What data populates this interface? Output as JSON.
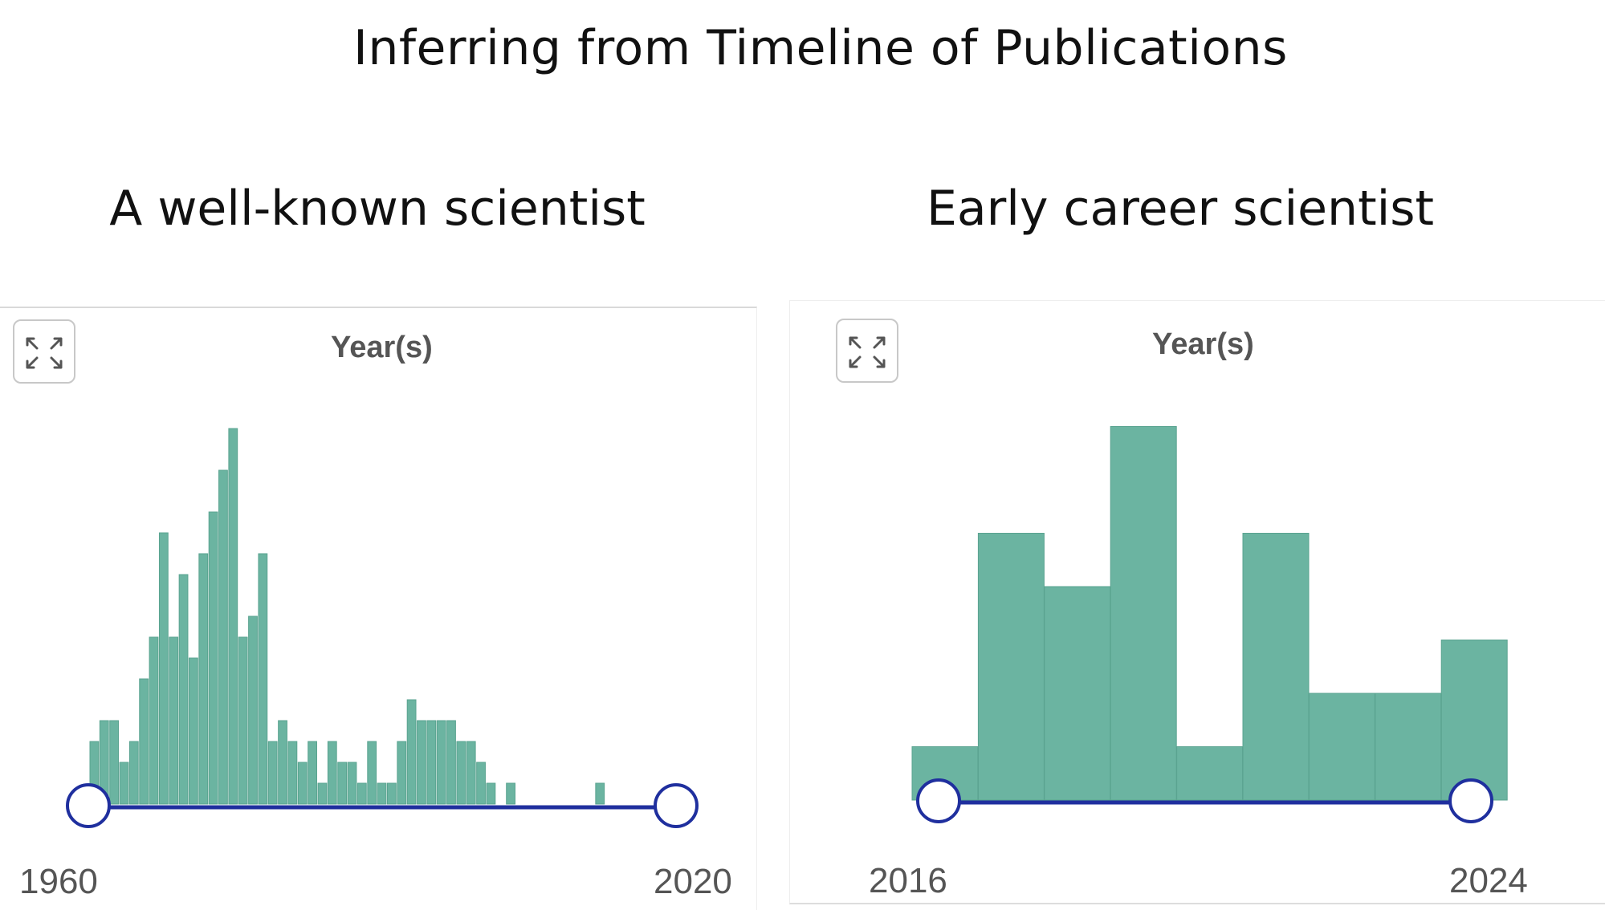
{
  "title": "Inferring from Timeline of Publications",
  "colors": {
    "bar": "#6bb4a1",
    "bar_edge": "#5aa390",
    "slider": "#1f2f9e",
    "handle_fill": "#ffffff"
  },
  "panels": [
    {
      "heading": "A well-known scientist",
      "header": "Year(s)",
      "expand_icon": "expand-arrows-icon",
      "range_min": "1960",
      "range_max": "2020"
    },
    {
      "heading": "Early career scientist",
      "header": "Year(s)",
      "expand_icon": "expand-arrows-icon",
      "range_min": "2016",
      "range_max": "2024"
    }
  ],
  "chart_data": [
    {
      "type": "bar",
      "title": "A well-known scientist",
      "xlabel": "Year(s)",
      "ylabel": "",
      "x": [
        1960,
        1961,
        1962,
        1963,
        1964,
        1965,
        1966,
        1967,
        1968,
        1969,
        1970,
        1971,
        1972,
        1973,
        1974,
        1975,
        1976,
        1977,
        1978,
        1979,
        1980,
        1981,
        1982,
        1983,
        1984,
        1985,
        1986,
        1987,
        1988,
        1989,
        1990,
        1991,
        1992,
        1993,
        1994,
        1995,
        1996,
        1997,
        1998,
        1999,
        2000,
        2001,
        2002,
        2003,
        2004,
        2005,
        2006,
        2007,
        2008,
        2009,
        2010,
        2011,
        2012,
        2013,
        2014,
        2015,
        2016,
        2017,
        2018,
        2019,
        2020
      ],
      "values": [
        3,
        4,
        4,
        2,
        3,
        6,
        8,
        13,
        8,
        11,
        7,
        12,
        14,
        16,
        18,
        8,
        9,
        12,
        3,
        4,
        3,
        2,
        3,
        1,
        3,
        2,
        2,
        1,
        3,
        1,
        1,
        3,
        5,
        4,
        4,
        4,
        4,
        3,
        3,
        2,
        1,
        0,
        1,
        0,
        0,
        0,
        0,
        0,
        0,
        0,
        0,
        1,
        0,
        0,
        0,
        0,
        0,
        0,
        0,
        0,
        0
      ],
      "xlim": [
        1960,
        2020
      ],
      "range_selector": [
        1960,
        2020
      ]
    },
    {
      "type": "bar",
      "title": "Early career scientist",
      "xlabel": "Year(s)",
      "ylabel": "",
      "x": [
        2016,
        2017,
        2018,
        2019,
        2020,
        2021,
        2022,
        2023,
        2024
      ],
      "values": [
        1,
        5,
        4,
        7,
        1,
        5,
        2,
        2,
        3
      ],
      "xlim": [
        2016,
        2024
      ],
      "range_selector": [
        2016,
        2024
      ]
    }
  ]
}
